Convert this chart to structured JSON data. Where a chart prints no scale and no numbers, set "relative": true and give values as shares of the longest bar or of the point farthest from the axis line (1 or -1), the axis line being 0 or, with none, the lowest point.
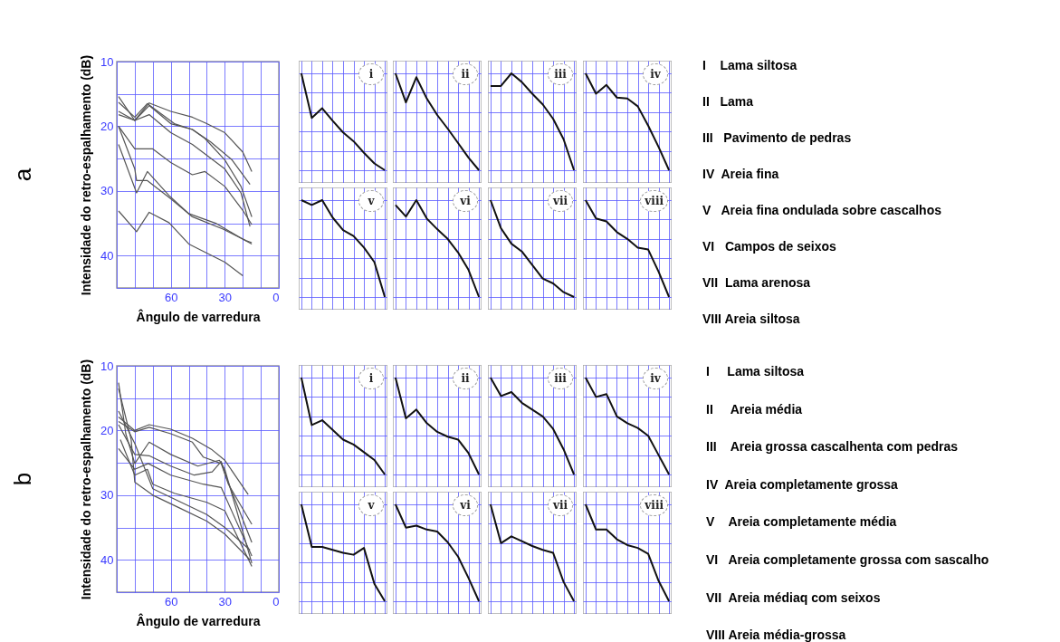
{
  "chart_data": [
    {
      "type": "line",
      "title": "a",
      "xlabel": "Ângulo de varredura",
      "ylabel": "Intensidade do retro-espalhamento (dB)",
      "xlim": [
        90,
        0
      ],
      "ylim": [
        45,
        10
      ],
      "grid": true,
      "xticks": [
        {
          "value": 90,
          "label": null
        },
        {
          "value": 80,
          "label": null
        },
        {
          "value": 70,
          "label": null
        },
        60,
        {
          "value": 50,
          "label": null
        },
        {
          "value": 40,
          "label": null
        },
        30,
        {
          "value": 20,
          "label": null
        },
        {
          "value": 10,
          "label": null
        },
        0
      ],
      "yticks": [
        10,
        {
          "value": 15,
          "label": null
        },
        20,
        {
          "value": 25,
          "label": null
        },
        30,
        {
          "value": 35,
          "label": null
        },
        40,
        {
          "value": 45,
          "label": null
        }
      ],
      "series": [
        {
          "color": "#555555",
          "x": [
            89,
            80,
            72,
            60,
            48,
            40,
            30,
            20,
            15
          ],
          "values": [
            15.4,
            19.1,
            16.4,
            17.7,
            18.6,
            19.6,
            21,
            24,
            27
          ]
        },
        {
          "color": "#555555",
          "x": [
            89,
            80,
            73,
            58,
            48,
            38,
            26,
            16
          ],
          "values": [
            16.3,
            18.6,
            16.5,
            19.6,
            20.5,
            22.4,
            25.2,
            29
          ]
        },
        {
          "color": "#555555",
          "x": [
            89,
            80,
            72,
            60,
            48,
            41,
            30,
            21,
            15
          ],
          "values": [
            17.7,
            19.1,
            16.8,
            19.6,
            20.5,
            21.9,
            25.2,
            29.3,
            34
          ]
        },
        {
          "color": "#555555",
          "x": [
            89,
            80,
            72,
            60,
            48,
            30,
            21,
            16
          ],
          "values": [
            18.2,
            19.1,
            18.2,
            21,
            22.8,
            26.6,
            30.3,
            35.5
          ]
        },
        {
          "color": "#555555",
          "x": [
            89,
            80,
            70,
            60,
            48,
            41,
            30,
            20,
            15
          ],
          "values": [
            20,
            23.5,
            23.5,
            25.6,
            27.5,
            27,
            29.3,
            33,
            35.2
          ]
        },
        {
          "color": "#555555",
          "x": [
            89,
            79,
            73,
            61,
            50,
            35,
            21,
            15
          ],
          "values": [
            22.8,
            30.3,
            27,
            30.7,
            33.5,
            35,
            37.3,
            38.2
          ]
        },
        {
          "color": "#555555",
          "x": [
            89,
            80,
            79,
            73,
            60,
            48,
            31,
            18,
            15
          ],
          "values": [
            20,
            26.6,
            28.4,
            28.4,
            31.2,
            34,
            35.9,
            37.7,
            38
          ]
        },
        {
          "color": "#555555",
          "x": [
            89,
            79,
            72,
            61,
            50,
            40,
            30,
            20
          ],
          "values": [
            33.1,
            36.3,
            33.3,
            34.9,
            38.2,
            39.6,
            41,
            43.1
          ]
        }
      ]
    },
    {
      "type": "line",
      "title": "i",
      "relative": true,
      "grid": true,
      "color": "#111111",
      "categories": [
        null,
        null,
        null,
        null,
        null,
        null,
        null,
        null,
        null
      ],
      "values": [
        1,
        0.54,
        0.64,
        0.51,
        0.39,
        0.3,
        0.18,
        0.07,
        0
      ]
    },
    {
      "type": "line",
      "title": "ii",
      "relative": true,
      "grid": true,
      "color": "#111111",
      "categories": [
        null,
        null,
        null,
        null,
        null,
        null,
        null,
        null,
        null
      ],
      "values": [
        1,
        0.7,
        0.96,
        0.74,
        0.57,
        0.43,
        0.28,
        0.13,
        0
      ]
    },
    {
      "type": "line",
      "title": "iii",
      "relative": true,
      "grid": true,
      "color": "#111111",
      "categories": [
        null,
        null,
        null,
        null,
        null,
        null,
        null,
        null,
        null
      ],
      "values": [
        0.87,
        0.87,
        1,
        0.91,
        0.79,
        0.68,
        0.53,
        0.32,
        0
      ]
    },
    {
      "type": "line",
      "title": "iv",
      "relative": true,
      "grid": true,
      "color": "#111111",
      "categories": [
        null,
        null,
        null,
        null,
        null,
        null,
        null,
        null,
        null
      ],
      "values": [
        1,
        0.79,
        0.88,
        0.75,
        0.74,
        0.66,
        0.46,
        0.24,
        0
      ]
    },
    {
      "type": "line",
      "title": "v",
      "relative": true,
      "grid": true,
      "color": "#111111",
      "categories": [
        null,
        null,
        null,
        null,
        null,
        null,
        null,
        null,
        null
      ],
      "values": [
        1,
        0.95,
        1,
        0.82,
        0.69,
        0.63,
        0.51,
        0.36,
        0
      ]
    },
    {
      "type": "line",
      "title": "vi",
      "relative": true,
      "grid": true,
      "color": "#111111",
      "categories": [
        null,
        null,
        null,
        null,
        null,
        null,
        null,
        null,
        null
      ],
      "values": [
        0.95,
        0.83,
        1,
        0.81,
        0.7,
        0.6,
        0.46,
        0.28,
        0
      ]
    },
    {
      "type": "line",
      "title": "vii",
      "relative": true,
      "grid": true,
      "color": "#111111",
      "categories": [
        null,
        null,
        null,
        null,
        null,
        null,
        null,
        null,
        null
      ],
      "values": [
        1,
        0.71,
        0.55,
        0.47,
        0.33,
        0.19,
        0.14,
        0.05,
        0
      ]
    },
    {
      "type": "line",
      "title": "viii",
      "relative": true,
      "grid": true,
      "color": "#111111",
      "categories": [
        null,
        null,
        null,
        null,
        null,
        null,
        null,
        null,
        null
      ],
      "values": [
        1,
        0.81,
        0.78,
        0.67,
        0.6,
        0.51,
        0.49,
        0.26,
        0
      ]
    },
    {
      "type": "other",
      "annotations": [
        "I    Lama siltosa",
        "II   Lama",
        "III   Pavimento de pedras",
        "IV  Areia fina",
        "V   Areia fina ondulada sobre cascalhos",
        "VI   Campos de seixos",
        "VII  Lama arenosa",
        "VIII Areia siltosa"
      ]
    },
    {
      "type": "line",
      "title": "b",
      "xlabel": "Ângulo de varredura",
      "ylabel": "Intensidade do retro-espalhamento (dB)",
      "xlim": [
        90,
        0
      ],
      "ylim": [
        45,
        10
      ],
      "grid": true,
      "xticks": [
        {
          "value": 90,
          "label": null
        },
        {
          "value": 80,
          "label": null
        },
        {
          "value": 70,
          "label": null
        },
        60,
        {
          "value": 50,
          "label": null
        },
        {
          "value": 40,
          "label": null
        },
        30,
        {
          "value": 20,
          "label": null
        },
        {
          "value": 10,
          "label": null
        },
        0
      ],
      "yticks": [
        10,
        {
          "value": 15,
          "label": null
        },
        20,
        {
          "value": 25,
          "label": null
        },
        30,
        {
          "value": 35,
          "label": null
        },
        40,
        {
          "value": 45,
          "label": null
        }
      ],
      "series": [
        {
          "color": "#555555",
          "x": [
            89,
            80,
            72,
            60,
            48,
            37,
            30,
            17
          ],
          "values": [
            17.9,
            20,
            19.1,
            19.8,
            21.2,
            23,
            24.6,
            29.9
          ]
        },
        {
          "color": "#555555",
          "x": [
            89,
            80,
            72,
            60,
            48,
            42,
            32,
            28,
            15
          ],
          "values": [
            18.6,
            20.2,
            19.5,
            20.5,
            21.8,
            24.1,
            25.1,
            28.3,
            34.5
          ]
        },
        {
          "color": "#555555",
          "x": [
            89,
            85,
            80,
            72,
            60,
            45,
            33,
            30,
            15
          ],
          "values": [
            12.6,
            20.5,
            25.1,
            21.8,
            23.7,
            25.5,
            24.6,
            26,
            40.5
          ]
        },
        {
          "color": "#555555",
          "x": [
            89,
            80,
            72,
            60,
            47,
            37,
            32,
            29,
            15
          ],
          "values": [
            19.1,
            23.7,
            23.9,
            25.5,
            26.9,
            26.4,
            24.8,
            27.4,
            37.3
          ]
        },
        {
          "color": "#555555",
          "x": [
            89,
            80,
            72.5,
            60,
            42,
            32,
            15
          ],
          "values": [
            22.8,
            26,
            25.1,
            26.9,
            28.3,
            28.8,
            39.4
          ]
        },
        {
          "color": "#555555",
          "x": [
            88,
            80,
            73,
            70,
            58,
            40,
            30,
            15
          ],
          "values": [
            21.4,
            26.9,
            26,
            28.3,
            29.7,
            31.1,
            32.4,
            41
          ]
        },
        {
          "color": "#555555",
          "x": [
            89,
            82,
            80,
            70,
            55,
            40,
            30,
            16
          ],
          "values": [
            13.5,
            21.4,
            28,
            30,
            32,
            34,
            36,
            40
          ]
        },
        {
          "color": "#555555",
          "x": [
            89,
            80,
            70,
            55,
            40,
            30,
            16
          ],
          "values": [
            17,
            22,
            29,
            31,
            33,
            35,
            38.5
          ]
        }
      ]
    },
    {
      "type": "line",
      "title": "i",
      "relative": true,
      "grid": true,
      "color": "#111111",
      "categories": [
        null,
        null,
        null,
        null,
        null,
        null,
        null,
        null,
        null
      ],
      "values": [
        1,
        0.51,
        0.56,
        0.46,
        0.36,
        0.31,
        0.23,
        0.15,
        0
      ]
    },
    {
      "type": "line",
      "title": "ii",
      "relative": true,
      "grid": true,
      "color": "#111111",
      "categories": [
        null,
        null,
        null,
        null,
        null,
        null,
        null,
        null,
        null
      ],
      "values": [
        1,
        0.58,
        0.67,
        0.53,
        0.44,
        0.39,
        0.36,
        0.22,
        0
      ]
    },
    {
      "type": "line",
      "title": "iii",
      "relative": true,
      "grid": true,
      "color": "#111111",
      "categories": [
        null,
        null,
        null,
        null,
        null,
        null,
        null,
        null,
        null
      ],
      "values": [
        1,
        0.81,
        0.85,
        0.74,
        0.67,
        0.6,
        0.47,
        0.26,
        0
      ]
    },
    {
      "type": "line",
      "title": "iv",
      "relative": true,
      "grid": true,
      "color": "#111111",
      "categories": [
        null,
        null,
        null,
        null,
        null,
        null,
        null,
        null,
        null
      ],
      "values": [
        1,
        0.8,
        0.83,
        0.6,
        0.53,
        0.48,
        0.4,
        0.2,
        0
      ]
    },
    {
      "type": "line",
      "title": "v",
      "relative": true,
      "grid": true,
      "color": "#111111",
      "categories": [
        null,
        null,
        null,
        null,
        null,
        null,
        null,
        null,
        null
      ],
      "values": [
        1,
        0.56,
        0.56,
        0.53,
        0.5,
        0.48,
        0.55,
        0.18,
        0
      ]
    },
    {
      "type": "line",
      "title": "vi",
      "relative": true,
      "grid": true,
      "color": "#111111",
      "categories": [
        null,
        null,
        null,
        null,
        null,
        null,
        null,
        null,
        null
      ],
      "values": [
        1,
        0.76,
        0.78,
        0.74,
        0.72,
        0.61,
        0.46,
        0.24,
        0
      ]
    },
    {
      "type": "line",
      "title": "vii",
      "relative": true,
      "grid": true,
      "color": "#111111",
      "categories": [
        null,
        null,
        null,
        null,
        null,
        null,
        null,
        null,
        null
      ],
      "values": [
        1,
        0.6,
        0.67,
        0.62,
        0.57,
        0.53,
        0.5,
        0.2,
        0
      ]
    },
    {
      "type": "line",
      "title": "viii",
      "relative": true,
      "grid": true,
      "color": "#111111",
      "categories": [
        null,
        null,
        null,
        null,
        null,
        null,
        null,
        null,
        null
      ],
      "values": [
        1,
        0.74,
        0.74,
        0.64,
        0.58,
        0.55,
        0.49,
        0.21,
        0
      ]
    },
    {
      "type": "other",
      "annotations": [
        "I     Lama siltosa",
        "II     Areia média",
        "III    Areia grossa cascalhenta com pedras",
        "IV  Areia completamente grossa",
        "V    Areia completamente média",
        "VI   Areia completamente grossa com sascalho",
        "VII  Areia médiaq com seixos",
        "VIII Areia média-grossa"
      ]
    }
  ]
}
